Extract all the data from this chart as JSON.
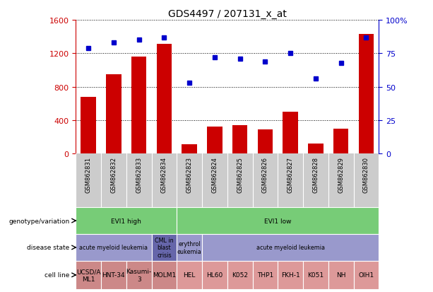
{
  "title": "GDS4497 / 207131_x_at",
  "samples": [
    "GSM862831",
    "GSM862832",
    "GSM862833",
    "GSM862834",
    "GSM862823",
    "GSM862824",
    "GSM862825",
    "GSM862826",
    "GSM862827",
    "GSM862828",
    "GSM862829",
    "GSM862830"
  ],
  "counts": [
    680,
    950,
    1160,
    1310,
    115,
    320,
    340,
    290,
    500,
    120,
    300,
    1430
  ],
  "percentiles": [
    79,
    83,
    85,
    87,
    53,
    72,
    71,
    69,
    75,
    56,
    68,
    87
  ],
  "ylim_left": [
    0,
    1600
  ],
  "ylim_right": [
    0,
    100
  ],
  "yticks_left": [
    0,
    400,
    800,
    1200,
    1600
  ],
  "yticks_right": [
    0,
    25,
    50,
    75,
    100
  ],
  "bar_color": "#cc0000",
  "dot_color": "#0000cc",
  "plot_bg": "#ffffff",
  "genotype_row": [
    {
      "label": "EVI1 high",
      "start": 0,
      "end": 4,
      "color": "#77cc77"
    },
    {
      "label": "EVI1 low",
      "start": 4,
      "end": 12,
      "color": "#77cc77"
    }
  ],
  "disease_row": [
    {
      "label": "acute myeloid leukemia",
      "start": 0,
      "end": 3,
      "color": "#9999cc"
    },
    {
      "label": "CML in\nblast\ncrisis",
      "start": 3,
      "end": 4,
      "color": "#6666aa"
    },
    {
      "label": "erythrol\neukemia",
      "start": 4,
      "end": 5,
      "color": "#9999cc"
    },
    {
      "label": "acute myeloid leukemia",
      "start": 5,
      "end": 12,
      "color": "#9999cc"
    }
  ],
  "cell_line_row": [
    {
      "label": "UCSD/A\nML1",
      "start": 0,
      "end": 1,
      "color": "#cc8888"
    },
    {
      "label": "HNT-34",
      "start": 1,
      "end": 2,
      "color": "#cc8888"
    },
    {
      "label": "Kasumi-\n3",
      "start": 2,
      "end": 3,
      "color": "#cc8888"
    },
    {
      "label": "MOLM1",
      "start": 3,
      "end": 4,
      "color": "#cc8888"
    },
    {
      "label": "HEL",
      "start": 4,
      "end": 5,
      "color": "#dd9999"
    },
    {
      "label": "HL60",
      "start": 5,
      "end": 6,
      "color": "#dd9999"
    },
    {
      "label": "K052",
      "start": 6,
      "end": 7,
      "color": "#dd9999"
    },
    {
      "label": "THP1",
      "start": 7,
      "end": 8,
      "color": "#dd9999"
    },
    {
      "label": "FKH-1",
      "start": 8,
      "end": 9,
      "color": "#dd9999"
    },
    {
      "label": "K051",
      "start": 9,
      "end": 10,
      "color": "#dd9999"
    },
    {
      "label": "NH",
      "start": 10,
      "end": 11,
      "color": "#dd9999"
    },
    {
      "label": "OIH1",
      "start": 11,
      "end": 12,
      "color": "#dd9999"
    }
  ],
  "xtick_bg": "#cccccc",
  "row_labels": [
    "genotype/variation",
    "disease state",
    "cell line"
  ],
  "background_color": "#ffffff"
}
